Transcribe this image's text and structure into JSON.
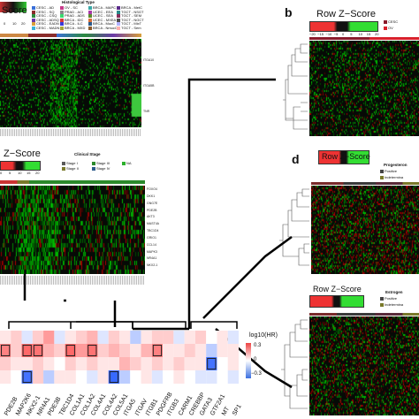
{
  "panel_a": {
    "zscore_title": "Score",
    "ticks": [
      "0",
      "10",
      "20"
    ],
    "legend_title": "Histological Type",
    "legend_items": [
      {
        "label": "CESC - AD",
        "color": "#3a6fd8"
      },
      {
        "label": "CESC - SQ",
        "color": "#8a2b2b"
      },
      {
        "label": "CESC - CSQ",
        "color": "#2b8a3e"
      },
      {
        "label": "CESC - ADSQ",
        "color": "#6a3aa8"
      },
      {
        "label": "CESC - EADN",
        "color": "#d8a03a"
      },
      {
        "label": "CESC - MADN",
        "color": "#3ab0d8"
      },
      {
        "label": "OV - SC",
        "color": "#c73a8a"
      },
      {
        "label": "PRAD - ACI",
        "color": "#888888"
      },
      {
        "label": "PRAD - ADS",
        "color": "#3ad86f"
      },
      {
        "label": "BRCA - IDC",
        "color": "#d83a3a"
      },
      {
        "label": "BRCA - ILC",
        "color": "#3a3ad8"
      },
      {
        "label": "BRCA - MXD",
        "color": "#a8a83a"
      },
      {
        "label": "BRCA - MAPC",
        "color": "#3aa8a8"
      },
      {
        "label": "UCEC - EEA",
        "color": "#a83aa8"
      },
      {
        "label": "UCEC - SEA",
        "color": "#5a8a2b"
      },
      {
        "label": "UCEC - MXEA",
        "color": "#d86f3a"
      },
      {
        "label": "BRCA - MucC",
        "color": "#2b5a8a"
      },
      {
        "label": "BRCA - NmucC",
        "color": "#8a5a2b"
      },
      {
        "label": "BRCA - MetC",
        "color": "#5a2b8a"
      },
      {
        "label": "TGCT - NSGT",
        "color": "#2b8a8a"
      },
      {
        "label": "TGCT - SEM",
        "color": "#8a2b5a"
      },
      {
        "label": "TGCT - NGCT",
        "color": "#4f4f4f"
      },
      {
        "label": "TGCT - MixT",
        "color": "#b0b0ff"
      },
      {
        "label": "TGCT - Sem",
        "color": "#ffb0b0"
      }
    ],
    "row_labels": [
      "ITGA10",
      "ITGA5B",
      "TNR"
    ]
  },
  "panel_b": {
    "letter": "b",
    "zscore_title": "Row Z−Score",
    "ticks": [
      "−20",
      "−15",
      "−10",
      "−5",
      "0",
      "5",
      "10",
      "15",
      "20"
    ],
    "legend_items": [
      {
        "label": "CESC",
        "color": "#8a1a2b"
      },
      {
        "label": "OV",
        "color": "#d8202b"
      }
    ]
  },
  "panel_c": {
    "zscore_title": "Z−Score",
    "ticks": [
      "0",
      "5",
      "10",
      "15",
      "20"
    ],
    "legend_title": "Clinical Stage",
    "legend_items": [
      {
        "label": "Stage I",
        "color": "#5a5a5a"
      },
      {
        "label": "Stage II",
        "color": "#7a7a2b"
      },
      {
        "label": "Stage III",
        "color": "#2b8a2b"
      },
      {
        "label": "Stage IV",
        "color": "#2b5a8a"
      },
      {
        "label": "NA",
        "color": "#2bb02b"
      }
    ],
    "row_labels": [
      "FOXO4",
      "DKK1",
      "GNG7E",
      "PDE2B",
      "AKT3",
      "MAST4A",
      "TBC1D4",
      "GRIO1",
      "CCL14",
      "MAPK3",
      "NR4A1",
      "NKX2-1"
    ]
  },
  "panel_d": {
    "letter": "d",
    "zscore_title": "Row Z−Score",
    "legend_title": "Progesteron",
    "legend_items": [
      {
        "label": "Positive",
        "color": "#444444"
      },
      {
        "label": "Indetermina",
        "color": "#7a7a2b"
      }
    ]
  },
  "panel_e": {
    "zscore_title": "Row Z−Score",
    "legend_title": "Estrogen",
    "legend_items": [
      {
        "label": "Positive",
        "color": "#444444"
      },
      {
        "label": "Indetermina",
        "color": "#7a7a2b"
      }
    ]
  },
  "hr_panel": {
    "legend_title": "log10(HR)",
    "legend_ticks": [
      "0.3",
      "0",
      "−0.3"
    ],
    "genes": [
      "PDE2B",
      "MAP2K6",
      "NKX2-1",
      "NR4A1",
      "PDE3B",
      "TBC1D4",
      "COL1A1",
      "COL1A2",
      "COL4A1",
      "COL4A2",
      "COL5A1",
      "ITGA5",
      "ITGAV",
      "ITGB1",
      "PDGFRB",
      "ITGB3",
      "CARM1",
      "CREBBP",
      "GATA3",
      "GTF2A1",
      "MT",
      "SP1"
    ],
    "values": [
      [
        0.05,
        0.1,
        -0.05,
        0.1,
        0.2,
        -0.05,
        0.05,
        0.1,
        0.15,
        -0.05,
        0.1,
        0.05,
        -0.1,
        0.05,
        0.1,
        0.1,
        -0.05,
        0.05,
        0.1,
        0.0,
        0.05,
        -0.05
      ],
      [
        0.25,
        0.1,
        0.3,
        0.28,
        0.15,
        0.1,
        0.3,
        0.2,
        0.28,
        0.1,
        0.15,
        0.1,
        0.05,
        0.15,
        0.25,
        0.05,
        0.05,
        0.1,
        0.05,
        -0.1,
        0.05,
        0.05
      ],
      [
        0.1,
        0.05,
        0.05,
        0.1,
        0.05,
        0.0,
        0.1,
        0.05,
        0.1,
        0.05,
        0.05,
        0.15,
        0.1,
        0.05,
        0.1,
        0.05,
        0.1,
        0.05,
        0.05,
        -0.28,
        0.0,
        0.05
      ],
      [
        0.05,
        0.0,
        -0.28,
        0.1,
        -0.1,
        0.05,
        0.05,
        0.0,
        -0.05,
        0.05,
        -0.3,
        -0.1,
        0.0,
        0.05,
        -0.05,
        0.0,
        0.05,
        0.0,
        -0.05,
        -0.05,
        0.0,
        -0.05
      ]
    ],
    "boxed": [
      [
        1,
        0
      ],
      [
        1,
        2
      ],
      [
        1,
        3
      ],
      [
        1,
        6
      ],
      [
        1,
        8
      ],
      [
        1,
        14
      ],
      [
        2,
        19
      ],
      [
        3,
        2
      ],
      [
        3,
        10
      ]
    ]
  }
}
